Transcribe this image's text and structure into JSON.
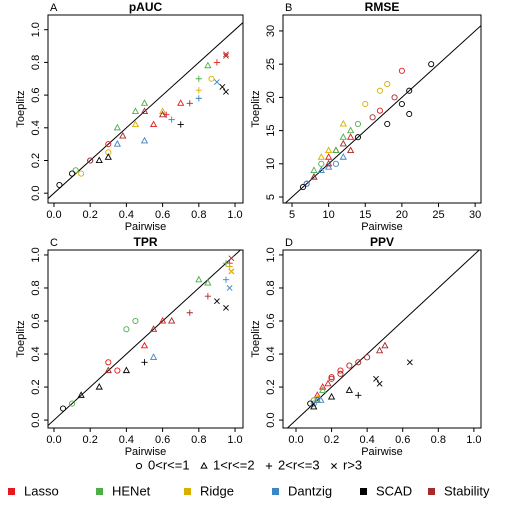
{
  "chart_data": [
    {
      "type": "scatter",
      "letter": "A",
      "title": "pAUC",
      "x_label": "Pairwise",
      "y_label": "Toeplitz",
      "xlim": [
        -0.033,
        1.044
      ],
      "ylim": [
        -0.06,
        1.09
      ],
      "xticks": [
        {
          "value": 0,
          "label": "0.0"
        },
        {
          "value": 0.2,
          "label": "0.2"
        },
        {
          "value": 0.4,
          "label": "0.4"
        },
        {
          "value": 0.6,
          "label": "0.6"
        },
        {
          "value": 0.8,
          "label": "0.8"
        },
        {
          "value": 1,
          "label": "1.0"
        }
      ],
      "yticks": [
        {
          "value": 0,
          "label": "0.0"
        },
        {
          "value": 0.2,
          "label": "0.2"
        },
        {
          "value": 0.4,
          "label": "0.4"
        },
        {
          "value": 0.6,
          "label": "0.6"
        },
        {
          "value": 0.8,
          "label": "0.8"
        },
        {
          "value": 1,
          "label": "1.0"
        }
      ],
      "series": [
        {
          "x": [
            0.55,
            0.62,
            0.9,
            0.95,
            0.3,
            0.7
          ],
          "y": [
            0.42,
            0.48,
            0.8,
            0.85,
            0.3,
            0.55
          ],
          "markers": [
            "triangle",
            "plus",
            "plus",
            "cross",
            "circle",
            "triangle"
          ]
        },
        {
          "x": [
            0.35,
            0.5,
            0.8,
            0.85,
            0.12,
            0.45
          ],
          "y": [
            0.4,
            0.55,
            0.7,
            0.78,
            0.14,
            0.5
          ],
          "markers": [
            "triangle",
            "triangle",
            "plus",
            "triangle",
            "circle",
            "triangle"
          ]
        },
        {
          "x": [
            0.3,
            0.6,
            0.8,
            0.87,
            0.15,
            0.45
          ],
          "y": [
            0.25,
            0.5,
            0.63,
            0.7,
            0.12,
            0.42
          ],
          "markers": [
            "circle",
            "triangle",
            "plus",
            "circle",
            "circle",
            "triangle"
          ]
        },
        {
          "x": [
            0.5,
            0.8,
            0.9,
            0.2,
            0.65,
            0.35
          ],
          "y": [
            0.32,
            0.58,
            0.68,
            0.2,
            0.45,
            0.3
          ],
          "markers": [
            "triangle",
            "plus",
            "cross",
            "circle",
            "plus",
            "triangle"
          ]
        },
        {
          "x": [
            0.03,
            0.1,
            0.25,
            0.7,
            0.93,
            0.95,
            0.3
          ],
          "y": [
            0.05,
            0.12,
            0.2,
            0.42,
            0.65,
            0.62,
            0.22
          ],
          "markers": [
            "circle",
            "circle",
            "triangle",
            "plus",
            "cross",
            "cross",
            "triangle"
          ]
        },
        {
          "x": [
            0.38,
            0.5,
            0.75,
            0.95,
            0.6,
            0.2
          ],
          "y": [
            0.35,
            0.5,
            0.55,
            0.84,
            0.48,
            0.2
          ],
          "markers": [
            "triangle",
            "triangle",
            "plus",
            "cross",
            "triangle",
            "circle"
          ]
        }
      ]
    },
    {
      "type": "scatter",
      "letter": "B",
      "title": "RMSE",
      "x_label": "Pairwise",
      "y_label": "Toeplitz",
      "xlim": [
        3.77,
        30.8
      ],
      "ylim": [
        4.1,
        32.4
      ],
      "xticks": [
        5,
        10,
        15,
        20,
        25,
        30
      ],
      "yticks": [
        5,
        10,
        15,
        20,
        25,
        30
      ],
      "series": [
        {
          "x": [
            7,
            10,
            13,
            17,
            20,
            11
          ],
          "y": [
            7,
            11,
            14,
            18,
            24,
            12
          ],
          "markers": [
            "circle",
            "triangle",
            "triangle",
            "circle",
            "circle",
            "triangle"
          ]
        },
        {
          "x": [
            8,
            11,
            12,
            14,
            9,
            13
          ],
          "y": [
            9,
            12,
            14,
            16,
            10,
            15
          ],
          "markers": [
            "triangle",
            "triangle",
            "triangle",
            "circle",
            "circle",
            "triangle"
          ]
        },
        {
          "x": [
            9,
            12,
            15,
            17,
            18,
            10
          ],
          "y": [
            11,
            16,
            19,
            21,
            22,
            12
          ],
          "markers": [
            "triangle",
            "triangle",
            "circle",
            "circle",
            "circle",
            "triangle"
          ]
        },
        {
          "x": [
            7,
            8,
            9,
            10,
            11,
            12
          ],
          "y": [
            7,
            8,
            9,
            9.5,
            10,
            11
          ],
          "markers": [
            "circle",
            "triangle",
            "triangle",
            "triangle",
            "circle",
            "triangle"
          ]
        },
        {
          "x": [
            6.5,
            14,
            18,
            21,
            24,
            20,
            21
          ],
          "y": [
            6.5,
            14,
            16,
            17.5,
            25,
            19,
            21
          ],
          "markers": [
            "circle",
            "circle",
            "circle",
            "circle",
            "circle",
            "circle",
            "circle"
          ]
        },
        {
          "x": [
            8,
            10,
            12,
            13,
            16,
            19
          ],
          "y": [
            8,
            10,
            13,
            12,
            17,
            20
          ],
          "markers": [
            "triangle",
            "triangle",
            "triangle",
            "triangle",
            "circle",
            "circle"
          ]
        }
      ]
    },
    {
      "type": "scatter",
      "letter": "C",
      "title": "TPR",
      "x_label": "Pairwise",
      "y_label": "Toeplitz",
      "xlim": [
        -0.033,
        1.044
      ],
      "ylim": [
        -0.048,
        1.03
      ],
      "xticks": [
        {
          "value": 0,
          "label": "0.0"
        },
        {
          "value": 0.2,
          "label": "0.2"
        },
        {
          "value": 0.4,
          "label": "0.4"
        },
        {
          "value": 0.6,
          "label": "0.6"
        },
        {
          "value": 0.8,
          "label": "0.8"
        },
        {
          "value": 1,
          "label": "1.0"
        }
      ],
      "yticks": [
        {
          "value": 0,
          "label": "0.0"
        },
        {
          "value": 0.2,
          "label": "0.2"
        },
        {
          "value": 0.4,
          "label": "0.4"
        },
        {
          "value": 0.6,
          "label": "0.6"
        },
        {
          "value": 0.8,
          "label": "0.8"
        },
        {
          "value": 1,
          "label": "1.0"
        }
      ],
      "series": [
        {
          "x": [
            0.3,
            0.5,
            0.6,
            0.97,
            0.98,
            0.35
          ],
          "y": [
            0.35,
            0.45,
            0.6,
            0.95,
            0.9,
            0.3
          ],
          "markers": [
            "circle",
            "triangle",
            "triangle",
            "plus",
            "cross",
            "circle"
          ]
        },
        {
          "x": [
            0.4,
            0.45,
            0.8,
            0.85,
            0.95,
            0.1
          ],
          "y": [
            0.55,
            0.6,
            0.85,
            0.83,
            0.95,
            0.1
          ],
          "markers": [
            "circle",
            "circle",
            "triangle",
            "triangle",
            "plus",
            "circle"
          ]
        },
        {
          "x": [
            0.97,
            0.98
          ],
          "y": [
            0.93,
            0.9
          ],
          "markers": [
            "plus",
            "cross"
          ]
        },
        {
          "x": [
            0.97,
            0.95,
            0.55
          ],
          "y": [
            0.8,
            0.85,
            0.38
          ],
          "markers": [
            "cross",
            "plus",
            "triangle"
          ]
        },
        {
          "x": [
            0.05,
            0.15,
            0.25,
            0.4,
            0.95,
            0.9,
            0.5
          ],
          "y": [
            0.07,
            0.15,
            0.2,
            0.3,
            0.68,
            0.72,
            0.35
          ],
          "markers": [
            "circle",
            "triangle",
            "triangle",
            "triangle",
            "cross",
            "cross",
            "plus"
          ]
        },
        {
          "x": [
            0.3,
            0.55,
            0.65,
            0.75,
            0.85,
            0.98
          ],
          "y": [
            0.3,
            0.55,
            0.6,
            0.65,
            0.75,
            0.98
          ],
          "markers": [
            "triangle",
            "triangle",
            "triangle",
            "plus",
            "plus",
            "cross"
          ]
        }
      ]
    },
    {
      "type": "scatter",
      "letter": "D",
      "title": "PPV",
      "x_label": "Pairwise",
      "y_label": "Toeplitz",
      "xlim": [
        -0.073,
        1.04
      ],
      "ylim": [
        -0.048,
        1.03
      ],
      "xticks": [
        {
          "value": 0,
          "label": "0.0"
        },
        {
          "value": 0.2,
          "label": "0.2"
        },
        {
          "value": 0.4,
          "label": "0.4"
        },
        {
          "value": 0.6,
          "label": "0.6"
        },
        {
          "value": 0.8,
          "label": "0.8"
        },
        {
          "value": 1,
          "label": "1.0"
        }
      ],
      "yticks": [
        {
          "value": 0,
          "label": "0.0"
        },
        {
          "value": 0.2,
          "label": "0.2"
        },
        {
          "value": 0.4,
          "label": "0.4"
        },
        {
          "value": 0.6,
          "label": "0.6"
        },
        {
          "value": 0.8,
          "label": "0.8"
        },
        {
          "value": 1,
          "label": "1.0"
        }
      ],
      "series": [
        {
          "x": [
            0.15,
            0.2,
            0.25,
            0.3,
            0.12,
            0.18
          ],
          "y": [
            0.2,
            0.25,
            0.3,
            0.33,
            0.15,
            0.22
          ],
          "markers": [
            "triangle",
            "circle",
            "circle",
            "circle",
            "triangle",
            "triangle"
          ]
        },
        {
          "x": [
            0.1,
            0.15
          ],
          "y": [
            0.12,
            0.18
          ],
          "markers": [
            "circle",
            "triangle"
          ]
        },
        {
          "x": [
            0.12
          ],
          "y": [
            0.13
          ],
          "markers": [
            "circle"
          ]
        },
        {
          "x": [
            0.1,
            0.12,
            0.14
          ],
          "y": [
            0.1,
            0.12,
            0.12
          ],
          "markers": [
            "circle",
            "triangle",
            "triangle"
          ]
        },
        {
          "x": [
            0.08,
            0.1,
            0.2,
            0.3,
            0.45,
            0.47,
            0.35,
            0.64
          ],
          "y": [
            0.1,
            0.08,
            0.14,
            0.18,
            0.25,
            0.22,
            0.15,
            0.35
          ],
          "markers": [
            "circle",
            "triangle",
            "triangle",
            "triangle",
            "cross",
            "cross",
            "plus",
            "cross"
          ]
        },
        {
          "x": [
            0.2,
            0.35,
            0.4,
            0.47,
            0.5,
            0.25
          ],
          "y": [
            0.26,
            0.35,
            0.38,
            0.42,
            0.45,
            0.28
          ],
          "markers": [
            "circle",
            "circle",
            "circle",
            "triangle",
            "triangle",
            "circle"
          ]
        }
      ]
    }
  ],
  "legend": {
    "shapes": [
      {
        "label": "0<r<=1",
        "marker": "circle"
      },
      {
        "label": "1<r<=2",
        "marker": "triangle"
      },
      {
        "label": "2<r<=3",
        "marker": "plus"
      },
      {
        "label": "r>3",
        "marker": "cross"
      }
    ],
    "methods": [
      {
        "name": "Lasso",
        "color": "#e8191c"
      },
      {
        "name": "HENet",
        "color": "#4daf4a"
      },
      {
        "name": "Ridge",
        "color": "#d9b000"
      },
      {
        "name": "Dantzig",
        "color": "#3a86c8"
      },
      {
        "name": "SCAD",
        "color": "#000000"
      },
      {
        "name": "Stability",
        "color": "#a52a2a"
      }
    ]
  }
}
